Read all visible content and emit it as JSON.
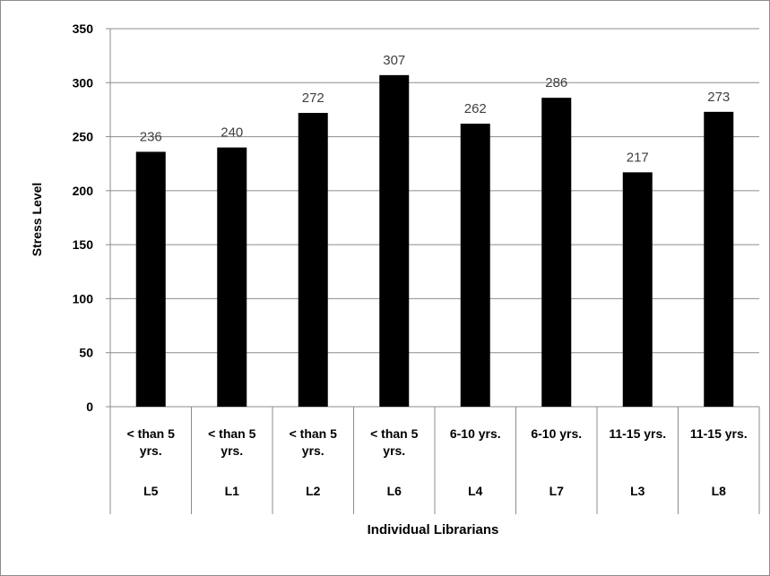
{
  "chart_data": {
    "type": "bar",
    "categories": [
      "L5",
      "L1",
      "L2",
      "L6",
      "L4",
      "L7",
      "L3",
      "L8"
    ],
    "group_labels": [
      [
        "< than 5",
        "yrs."
      ],
      [
        "< than 5",
        "yrs."
      ],
      [
        "< than 5",
        "yrs."
      ],
      [
        "< than 5",
        "yrs."
      ],
      [
        "6-10 yrs."
      ],
      [
        "6-10 yrs."
      ],
      [
        "11-15 yrs."
      ],
      [
        "11-15 yrs."
      ]
    ],
    "values": [
      236,
      240,
      272,
      307,
      262,
      286,
      217,
      273
    ],
    "xlabel": "Individual Librarians",
    "ylabel": "Stress Level",
    "ylim": [
      0,
      350
    ],
    "yticks": [
      0,
      50,
      100,
      150,
      200,
      250,
      300,
      350
    ],
    "grid": true,
    "legend": "none",
    "bar_color": "#000000"
  }
}
